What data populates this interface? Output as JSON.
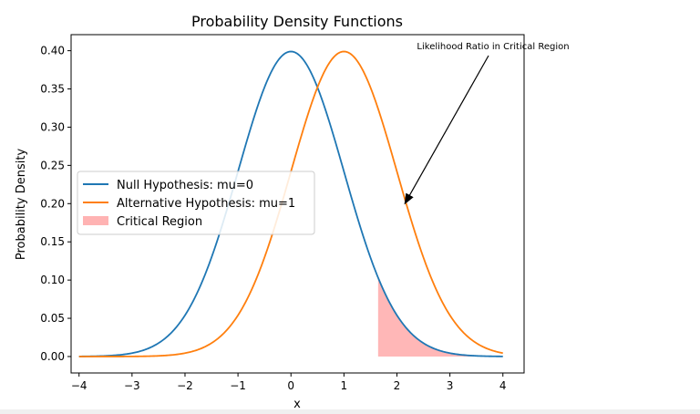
{
  "chart_data": {
    "type": "line",
    "title": "Probability Density Functions",
    "xlabel": "x",
    "ylabel": "Probability Density",
    "xlim": [
      -4.15,
      4.4
    ],
    "ylim": [
      -0.0215,
      0.421
    ],
    "x_ticks": [
      -4,
      -3,
      -2,
      -1,
      0,
      1,
      2,
      3,
      4
    ],
    "x_tick_labels": [
      "−4",
      "−3",
      "−2",
      "−1",
      "0",
      "1",
      "2",
      "3",
      "4"
    ],
    "y_ticks": [
      0.0,
      0.05,
      0.1,
      0.15,
      0.2,
      0.25,
      0.3,
      0.35,
      0.4
    ],
    "y_tick_labels": [
      "0.00",
      "0.05",
      "0.10",
      "0.15",
      "0.20",
      "0.25",
      "0.30",
      "0.35",
      "0.40"
    ],
    "grid": false,
    "legend_position": "center-left",
    "x_range": [
      -4,
      4
    ],
    "series": [
      {
        "name": "Null Hypothesis: mu=0",
        "kind": "normal_pdf",
        "mu": 0,
        "sigma": 1,
        "color": "#1f77b4"
      },
      {
        "name": "Alternative Hypothesis: mu=1",
        "kind": "normal_pdf",
        "mu": 1,
        "sigma": 1,
        "color": "#ff7f0e"
      }
    ],
    "filled_region": {
      "name": "Critical Region",
      "under_series": "Null Hypothesis: mu=0",
      "x_from": 1.645,
      "x_to": 4,
      "color": "#ff9999"
    },
    "annotation": {
      "text": "Likelihood Ratio in Critical Region",
      "point": [
        2.15,
        0.2
      ]
    }
  }
}
